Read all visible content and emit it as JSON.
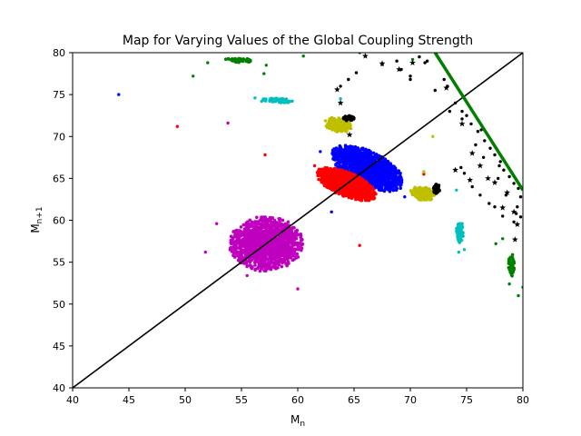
{
  "chart_data": {
    "type": "scatter",
    "title": "Map for Varying Values of the Global Coupling Strength",
    "xlabel": "M",
    "xlabel_sub": "n",
    "ylabel": "M",
    "ylabel_sub": "n+1",
    "xlim": [
      40,
      80
    ],
    "ylim": [
      40,
      80
    ],
    "xticks": [
      40,
      45,
      50,
      55,
      60,
      65,
      70,
      75,
      80
    ],
    "yticks": [
      40,
      45,
      50,
      55,
      60,
      65,
      70,
      75,
      80
    ],
    "grid": false,
    "legend": "none",
    "identity_line": {
      "x": [
        40,
        80
      ],
      "y": [
        40,
        80
      ],
      "color": "#000000"
    },
    "green_line": {
      "x": [
        72.2,
        80
      ],
      "y": [
        80,
        63.6
      ],
      "color": "#008000"
    },
    "clusters": [
      {
        "color": "#bf00bf",
        "cx": 57.2,
        "cy": 57.2,
        "rx": 3.1,
        "ry": 3.2,
        "n": 1400,
        "angle": -30
      },
      {
        "color": "#0000ff",
        "cx": 66.2,
        "cy": 66.2,
        "rx": 3.6,
        "ry": 1.8,
        "n": 1400,
        "angle": -38
      },
      {
        "color": "#ff0000",
        "cx": 64.3,
        "cy": 64.3,
        "rx": 2.9,
        "ry": 1.3,
        "n": 1100,
        "angle": -32
      },
      {
        "color": "#bfbf00",
        "cx": 63.6,
        "cy": 71.4,
        "rx": 1.2,
        "ry": 0.8,
        "n": 220,
        "angle": -20
      },
      {
        "color": "#bfbf00",
        "cx": 71.1,
        "cy": 63.2,
        "rx": 1.1,
        "ry": 0.8,
        "n": 200,
        "angle": -20
      },
      {
        "color": "#000000",
        "cx": 64.5,
        "cy": 72.2,
        "rx": 0.5,
        "ry": 0.3,
        "n": 60,
        "angle": 0
      },
      {
        "color": "#000000",
        "cx": 72.3,
        "cy": 63.8,
        "rx": 0.35,
        "ry": 0.6,
        "n": 60,
        "angle": 0
      },
      {
        "color": "#00bfbf",
        "cx": 58.2,
        "cy": 74.3,
        "rx": 1.4,
        "ry": 0.25,
        "n": 90,
        "angle": -3
      },
      {
        "color": "#00bfbf",
        "cx": 74.4,
        "cy": 58.6,
        "rx": 0.3,
        "ry": 1.3,
        "n": 90,
        "angle": 0
      },
      {
        "color": "#008000",
        "cx": 54.8,
        "cy": 79.1,
        "rx": 1.2,
        "ry": 0.25,
        "n": 60,
        "angle": -3
      },
      {
        "color": "#008000",
        "cx": 79.0,
        "cy": 54.6,
        "rx": 0.3,
        "ry": 1.3,
        "n": 60,
        "angle": 0
      }
    ],
    "stray_points": [
      {
        "color": "#0000ff",
        "points": [
          [
            44.1,
            75.0
          ],
          [
            62.0,
            68.2
          ],
          [
            63.0,
            61.0
          ],
          [
            69.5,
            62.8
          ]
        ]
      },
      {
        "color": "#ff0000",
        "points": [
          [
            49.3,
            71.2
          ],
          [
            57.1,
            67.8
          ],
          [
            65.5,
            57.0
          ],
          [
            61.5,
            66.5
          ],
          [
            71.2,
            65.5
          ]
        ]
      },
      {
        "color": "#bf00bf",
        "points": [
          [
            53.8,
            71.6
          ],
          [
            51.8,
            56.2
          ],
          [
            52.8,
            59.6
          ],
          [
            60.0,
            51.8
          ],
          [
            55.5,
            53.4
          ]
        ]
      },
      {
        "color": "#bfbf00",
        "points": [
          [
            72.0,
            70.0
          ],
          [
            71.2,
            65.8
          ]
        ]
      },
      {
        "color": "#00bfbf",
        "points": [
          [
            56.2,
            74.6
          ],
          [
            56.8,
            74.2
          ],
          [
            63.8,
            74.5
          ],
          [
            74.1,
            63.6
          ],
          [
            74.8,
            56.5
          ],
          [
            74.3,
            56.2
          ]
        ]
      },
      {
        "color": "#008000",
        "points": [
          [
            50.7,
            77.2
          ],
          [
            52.0,
            78.8
          ],
          [
            57.0,
            77.5
          ],
          [
            57.2,
            78.5
          ],
          [
            60.5,
            79.6
          ],
          [
            65.5,
            80.0
          ],
          [
            70.2,
            79.2
          ],
          [
            79.6,
            51.0
          ],
          [
            78.8,
            52.4
          ],
          [
            77.6,
            57.2
          ],
          [
            78.2,
            57.8
          ],
          [
            80.0,
            52.0
          ]
        ]
      },
      {
        "color": "#000000",
        "points": [
          [
            63.8,
            76.0
          ],
          [
            64.5,
            76.8
          ],
          [
            65.2,
            77.6
          ],
          [
            67.5,
            78.6
          ],
          [
            68.8,
            79.0
          ],
          [
            69.2,
            78.0
          ],
          [
            70.0,
            77.2
          ],
          [
            70.8,
            79.5
          ],
          [
            71.5,
            79.0
          ],
          [
            72.3,
            79.8
          ],
          [
            70.0,
            76.8
          ],
          [
            71.3,
            78.8
          ],
          [
            73.0,
            76.8
          ],
          [
            73.3,
            76.0
          ],
          [
            72.2,
            75.5
          ],
          [
            74.0,
            74.0
          ],
          [
            74.6,
            73.0
          ],
          [
            75.0,
            72.5
          ],
          [
            75.4,
            71.5
          ],
          [
            76.0,
            70.6
          ],
          [
            76.6,
            69.5
          ],
          [
            77.1,
            68.6
          ],
          [
            77.5,
            67.8
          ],
          [
            78.0,
            67.0
          ],
          [
            78.3,
            66.0
          ],
          [
            78.8,
            65.2
          ],
          [
            79.2,
            64.4
          ],
          [
            79.6,
            63.8
          ],
          [
            79.8,
            62.8
          ],
          [
            79.5,
            61.6
          ],
          [
            79.8,
            60.4
          ],
          [
            79.2,
            59.8
          ],
          [
            78.2,
            60.5
          ],
          [
            77.5,
            61.6
          ],
          [
            77.0,
            62.0
          ],
          [
            76.2,
            63.0
          ],
          [
            75.5,
            64.0
          ],
          [
            74.8,
            65.6
          ],
          [
            74.5,
            66.3
          ],
          [
            75.8,
            69.0
          ],
          [
            76.5,
            67.5
          ],
          [
            77.8,
            65.0
          ],
          [
            78.5,
            63.0
          ],
          [
            73.5,
            73.0
          ],
          [
            74.6,
            72.1
          ],
          [
            76.3,
            70.8
          ],
          [
            77.9,
            66.5
          ],
          [
            79.4,
            60.8
          ]
        ]
      }
    ],
    "star_points": [
      [
        66.0,
        79.6
      ],
      [
        67.5,
        78.7
      ],
      [
        69.0,
        78.0
      ],
      [
        70.2,
        78.8
      ],
      [
        73.2,
        75.8
      ],
      [
        74.6,
        71.5
      ],
      [
        75.5,
        68.0
      ],
      [
        76.2,
        66.5
      ],
      [
        76.9,
        65.0
      ],
      [
        77.5,
        64.5
      ],
      [
        78.6,
        63.3
      ],
      [
        79.2,
        61.0
      ],
      [
        79.5,
        59.5
      ],
      [
        79.3,
        57.7
      ],
      [
        75.3,
        64.8
      ],
      [
        63.8,
        74.0
      ],
      [
        64.6,
        70.2
      ],
      [
        63.5,
        75.6
      ],
      [
        78.2,
        61.5
      ],
      [
        74.0,
        66.0
      ]
    ],
    "star_color": "#000000"
  }
}
